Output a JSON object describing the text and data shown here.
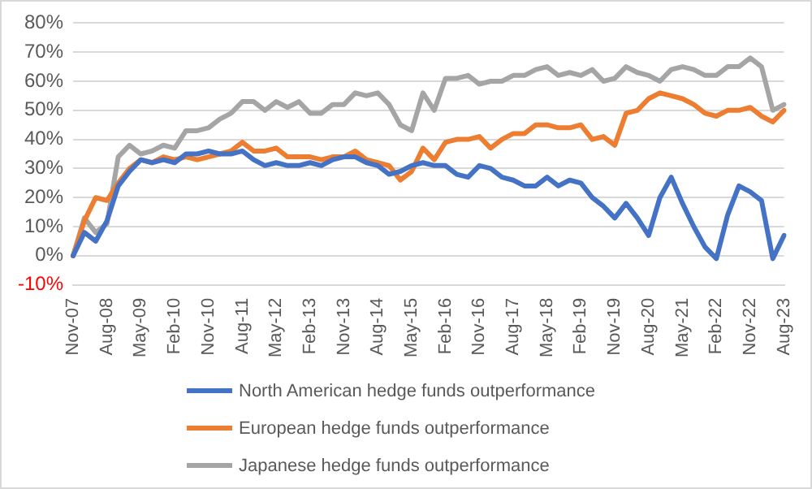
{
  "chart_data": {
    "type": "line",
    "categories": [
      "Nov-07",
      null,
      null,
      "Aug-08",
      null,
      null,
      "May-09",
      null,
      null,
      "Feb-10",
      null,
      null,
      "Nov-10",
      null,
      null,
      "Aug-11",
      null,
      null,
      "May-12",
      null,
      null,
      "Feb-13",
      null,
      null,
      "Nov-13",
      null,
      null,
      "Aug-14",
      null,
      null,
      "May-15",
      null,
      null,
      "Feb-16",
      null,
      null,
      "Nov-16",
      null,
      null,
      "Aug-17",
      null,
      null,
      "May-18",
      null,
      null,
      "Feb-19",
      null,
      null,
      "Nov-19",
      null,
      null,
      "Aug-20",
      null,
      null,
      "May-21",
      null,
      null,
      "Feb-22",
      null,
      null,
      "Nov-22",
      null,
      null,
      "Aug-23"
    ],
    "series": [
      {
        "name": "North American hedge funds outperformance",
        "color": "#4472c4",
        "values": [
          0,
          8,
          5,
          12,
          24,
          29,
          33,
          32,
          33,
          32,
          35,
          35,
          36,
          35,
          35,
          36,
          33,
          31,
          32,
          31,
          31,
          32,
          31,
          33,
          34,
          34,
          32,
          31,
          28,
          29,
          31,
          32,
          31,
          31,
          28,
          27,
          31,
          30,
          27,
          26,
          24,
          24,
          27,
          24,
          26,
          25,
          20,
          17,
          13,
          18,
          13,
          7,
          20,
          27,
          18,
          10,
          3,
          -1,
          14,
          24,
          22,
          19,
          -1,
          7
        ]
      },
      {
        "name": "European hedge funds outperformance",
        "color": "#ed7d31",
        "values": [
          0,
          12,
          20,
          19,
          25,
          30,
          33,
          32,
          34,
          33,
          34,
          33,
          34,
          35,
          36,
          39,
          36,
          36,
          37,
          34,
          34,
          34,
          33,
          34,
          34,
          36,
          33,
          32,
          31,
          26,
          29,
          37,
          33,
          39,
          40,
          40,
          41,
          37,
          40,
          42,
          42,
          45,
          45,
          44,
          44,
          45,
          40,
          41,
          38,
          49,
          50,
          54,
          56,
          55,
          54,
          52,
          49,
          48,
          50,
          50,
          51,
          48,
          46,
          50
        ]
      },
      {
        "name": "Japanese hedge funds outperformance",
        "color": "#a5a5a5",
        "values": [
          0,
          13,
          8,
          11,
          34,
          38,
          35,
          36,
          38,
          37,
          43,
          43,
          44,
          47,
          49,
          53,
          53,
          50,
          53,
          51,
          53,
          49,
          49,
          52,
          52,
          56,
          55,
          56,
          52,
          45,
          43,
          56,
          50,
          61,
          61,
          62,
          59,
          60,
          60,
          62,
          62,
          64,
          65,
          62,
          63,
          62,
          64,
          60,
          61,
          65,
          63,
          62,
          60,
          64,
          65,
          64,
          62,
          62,
          65,
          65,
          68,
          65,
          50,
          52
        ]
      }
    ],
    "ylim": [
      -10,
      80
    ],
    "yticks": [
      {
        "value": -10,
        "label": "-10%"
      },
      {
        "value": 0,
        "label": "0%"
      },
      {
        "value": 10,
        "label": "10%"
      },
      {
        "value": 20,
        "label": "20%"
      },
      {
        "value": 30,
        "label": "30%"
      },
      {
        "value": 40,
        "label": "40%"
      },
      {
        "value": 50,
        "label": "50%"
      },
      {
        "value": 60,
        "label": "60%"
      },
      {
        "value": 70,
        "label": "70%"
      },
      {
        "value": 80,
        "label": "80%"
      }
    ],
    "grid": "y",
    "legend": "bottom",
    "marker": "none",
    "line_style": "solid"
  }
}
